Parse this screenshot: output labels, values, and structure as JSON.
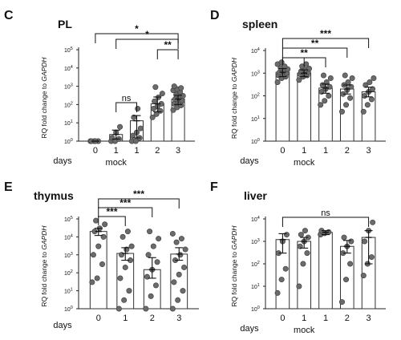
{
  "figure": {
    "days_label": "days",
    "mock_label": "mock",
    "ylabel_prefix": "RQ fold change to ",
    "ylabel_gene": "GAPDH"
  },
  "chart_data": [
    {
      "type": "bar",
      "id": "C",
      "panel_letter": "C",
      "title": "PL",
      "categories": [
        "0",
        "1",
        "1",
        "2",
        "3"
      ],
      "category_groups": [
        "",
        "mock",
        "",
        "",
        ""
      ],
      "yscale": "log",
      "ylim_exp": [
        0,
        5
      ],
      "means": [
        1,
        2.3,
        13,
        110,
        200
      ],
      "errors": [
        [
          1,
          1
        ],
        [
          1.3,
          4
        ],
        [
          1.5,
          25
        ],
        [
          40,
          260
        ],
        [
          100,
          320
        ]
      ],
      "points": [
        [
          1,
          1,
          1,
          1,
          1
        ],
        [
          1,
          1,
          1.3,
          1.5,
          3,
          6
        ],
        [
          1,
          1,
          1.5,
          2,
          3,
          5,
          20,
          60
        ],
        [
          20,
          30,
          45,
          60,
          80,
          110,
          150,
          250,
          400,
          900
        ],
        [
          50,
          70,
          90,
          110,
          130,
          160,
          200,
          250,
          300,
          350,
          500,
          600,
          700,
          800,
          1000
        ]
      ],
      "comparisons": [
        {
          "from": 0,
          "to": 4,
          "label": "*"
        },
        {
          "from": 1,
          "to": 4,
          "label": "*"
        },
        {
          "from": 3,
          "to": 4,
          "label": "**"
        },
        {
          "from": 1,
          "to": 2,
          "label": "ns"
        }
      ]
    },
    {
      "type": "bar",
      "id": "D",
      "panel_letter": "D",
      "title": "spleen",
      "categories": [
        "0",
        "1",
        "1",
        "2",
        "3"
      ],
      "category_groups": [
        "",
        "mock",
        "",
        "",
        ""
      ],
      "yscale": "log",
      "ylim_exp": [
        0,
        4
      ],
      "means": [
        1100,
        1000,
        220,
        200,
        150
      ],
      "errors": [
        [
          700,
          1600
        ],
        [
          700,
          1400
        ],
        [
          130,
          330
        ],
        [
          120,
          300
        ],
        [
          90,
          240
        ]
      ],
      "points": [
        [
          400,
          600,
          700,
          800,
          900,
          1000,
          1100,
          1300,
          1500,
          1700,
          2000,
          2500,
          3000
        ],
        [
          500,
          700,
          800,
          900,
          1000,
          1100,
          1200,
          1400,
          1600,
          2000,
          2500
        ],
        [
          40,
          60,
          100,
          150,
          200,
          250,
          300,
          400,
          600,
          800
        ],
        [
          20,
          40,
          80,
          120,
          180,
          250,
          300,
          400,
          600,
          800
        ],
        [
          20,
          40,
          70,
          100,
          150,
          200,
          300,
          400,
          600
        ]
      ],
      "comparisons": [
        {
          "from": 0,
          "to": 1,
          "label": ""
        },
        {
          "from": 0,
          "to": 4,
          "label": "***"
        },
        {
          "from": 0,
          "to": 3,
          "label": "**"
        },
        {
          "from": 0,
          "to": 2,
          "label": "**"
        }
      ]
    },
    {
      "type": "bar",
      "id": "E",
      "panel_letter": "E",
      "title": "thymus",
      "categories": [
        "0",
        "1",
        "2",
        "3"
      ],
      "category_groups": [
        "",
        "",
        "",
        ""
      ],
      "yscale": "log",
      "ylim_exp": [
        0,
        5
      ],
      "means": [
        20000,
        1200,
        150,
        1100
      ],
      "errors": [
        [
          12000,
          30000
        ],
        [
          500,
          2500
        ],
        [
          50,
          700
        ],
        [
          500,
          2500
        ]
      ],
      "points": [
        [
          30,
          50,
          300,
          1000,
          3000,
          10000,
          20000,
          30000,
          50000,
          80000
        ],
        [
          1,
          3,
          10,
          50,
          200,
          500,
          1000,
          2000,
          3000,
          10000,
          20000
        ],
        [
          1,
          5,
          20,
          60,
          150,
          400,
          1000,
          3000,
          8000,
          20000
        ],
        [
          1,
          3,
          10,
          30,
          80,
          200,
          500,
          1000,
          2000,
          5000,
          8000,
          15000
        ]
      ],
      "comparisons": [
        {
          "from": 0,
          "to": 1,
          "label": "***"
        },
        {
          "from": 0,
          "to": 2,
          "label": "***"
        },
        {
          "from": 0,
          "to": 3,
          "label": "***"
        }
      ]
    },
    {
      "type": "bar",
      "id": "F",
      "panel_letter": "F",
      "title": "liver",
      "categories": [
        "0",
        "1",
        "1",
        "2",
        "3"
      ],
      "category_groups": [
        "",
        "mock",
        "",
        "",
        ""
      ],
      "yscale": "log",
      "ylim_exp": [
        0,
        4
      ],
      "means": [
        1200,
        1000,
        2500,
        600,
        1500
      ],
      "errors": [
        [
          300,
          2200
        ],
        [
          500,
          1500
        ],
        [
          2000,
          3000
        ],
        [
          300,
          1100
        ],
        [
          100,
          3000
        ]
      ],
      "points": [
        [
          5,
          20,
          60,
          300,
          1000,
          2000
        ],
        [
          10,
          100,
          300,
          600,
          1000,
          1500,
          2000,
          3000
        ],
        [
          2000,
          2300,
          2600,
          3000
        ],
        [
          2,
          20,
          100,
          300,
          600,
          1000,
          1500
        ],
        [
          30,
          100,
          200,
          1000,
          3000,
          7000
        ]
      ],
      "comparisons": [
        {
          "from": 0,
          "to": 4,
          "label": "ns"
        }
      ]
    }
  ]
}
